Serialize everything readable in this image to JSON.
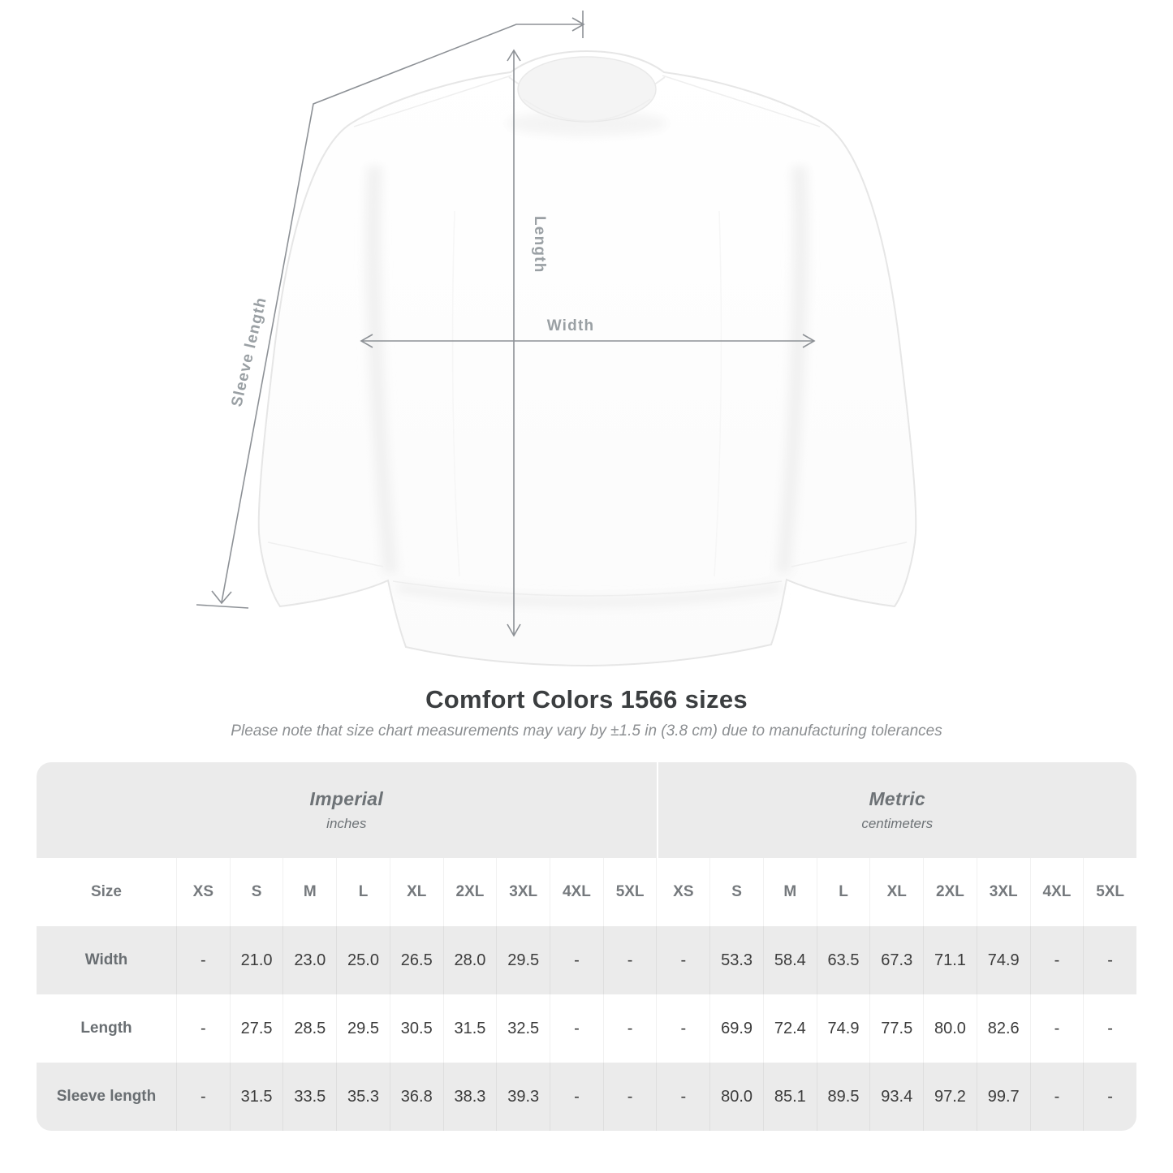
{
  "diagram": {
    "labels": {
      "sleeve": "Sleeve length",
      "length": "Length",
      "width": "Width"
    }
  },
  "chart_data": {
    "type": "table",
    "title": "Comfort Colors 1566 sizes",
    "subtitle": "Please note that size chart measurements may vary by ±1.5 in (3.8 cm) due to manufacturing tolerances",
    "size_header": "Size",
    "sizes": [
      "XS",
      "S",
      "M",
      "L",
      "XL",
      "2XL",
      "3XL",
      "4XL",
      "5XL"
    ],
    "groups": [
      {
        "label": "Imperial",
        "unit": "inches"
      },
      {
        "label": "Metric",
        "unit": "centimeters"
      }
    ],
    "rows": [
      {
        "label": "Width",
        "imperial": [
          "-",
          "21.0",
          "23.0",
          "25.0",
          "26.5",
          "28.0",
          "29.5",
          "-",
          "-"
        ],
        "metric": [
          "-",
          "53.3",
          "58.4",
          "63.5",
          "67.3",
          "71.1",
          "74.9",
          "-",
          "-"
        ]
      },
      {
        "label": "Length",
        "imperial": [
          "-",
          "27.5",
          "28.5",
          "29.5",
          "30.5",
          "31.5",
          "32.5",
          "-",
          "-"
        ],
        "metric": [
          "-",
          "69.9",
          "72.4",
          "74.9",
          "77.5",
          "80.0",
          "82.6",
          "-",
          "-"
        ]
      },
      {
        "label": "Sleeve length",
        "imperial": [
          "-",
          "31.5",
          "33.5",
          "35.3",
          "36.8",
          "38.3",
          "39.3",
          "-",
          "-"
        ],
        "metric": [
          "-",
          "80.0",
          "85.1",
          "89.5",
          "93.4",
          "97.2",
          "99.7",
          "-",
          "-"
        ]
      }
    ],
    "colors": {
      "table_shade": "#ebebeb",
      "annotation_gray": "#8d9196",
      "label_gray": "#9aa0a4",
      "value_text": "#3c3c3c"
    }
  }
}
